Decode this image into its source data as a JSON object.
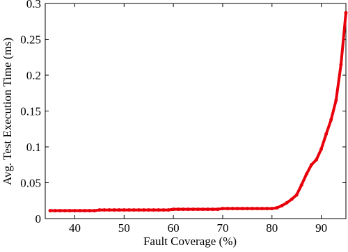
{
  "chart_data": {
    "type": "line",
    "x_label": "Fault Coverage (%)",
    "y_label": "Avg. Test Execution Time (ms)",
    "x": [
      35,
      36,
      37,
      38,
      39,
      40,
      41,
      42,
      43,
      44,
      45,
      46,
      47,
      48,
      49,
      50,
      51,
      52,
      53,
      54,
      55,
      56,
      57,
      58,
      59,
      60,
      61,
      62,
      63,
      64,
      65,
      66,
      67,
      68,
      69,
      70,
      71,
      72,
      73,
      74,
      75,
      76,
      77,
      78,
      79,
      80,
      81,
      82,
      83,
      84,
      85,
      86,
      87,
      88,
      89,
      90,
      91,
      92,
      93,
      94,
      95
    ],
    "series": [
      {
        "color": "#e8000b",
        "values": [
          0.011,
          0.011,
          0.011,
          0.011,
          0.011,
          0.011,
          0.011,
          0.011,
          0.011,
          0.011,
          0.012,
          0.012,
          0.012,
          0.012,
          0.012,
          0.012,
          0.012,
          0.012,
          0.012,
          0.012,
          0.012,
          0.012,
          0.012,
          0.012,
          0.012,
          0.013,
          0.013,
          0.013,
          0.013,
          0.013,
          0.013,
          0.013,
          0.013,
          0.013,
          0.013,
          0.014,
          0.014,
          0.014,
          0.014,
          0.014,
          0.014,
          0.014,
          0.014,
          0.014,
          0.014,
          0.014,
          0.015,
          0.018,
          0.022,
          0.027,
          0.033,
          0.047,
          0.062,
          0.075,
          0.082,
          0.097,
          0.118,
          0.138,
          0.165,
          0.215,
          0.287
        ]
      }
    ],
    "xlim": [
      34,
      95
    ],
    "xticks": [
      40,
      50,
      60,
      70,
      80,
      90
    ],
    "ylim": [
      0,
      0.3
    ],
    "yticks": [
      0,
      0.05,
      0.1,
      0.15,
      0.2,
      0.25,
      0.3
    ]
  }
}
